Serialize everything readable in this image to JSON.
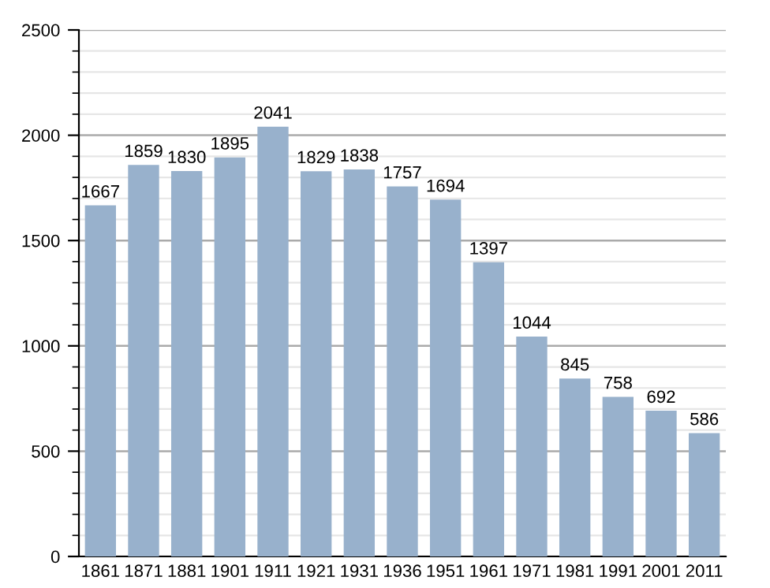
{
  "chart_data": {
    "type": "bar",
    "categories": [
      "1861",
      "1871",
      "1881",
      "1901",
      "1911",
      "1921",
      "1931",
      "1936",
      "1951",
      "1961",
      "1971",
      "1981",
      "1991",
      "2001",
      "2011"
    ],
    "values": [
      1667,
      1859,
      1830,
      1895,
      2041,
      1829,
      1838,
      1757,
      1694,
      1397,
      1044,
      845,
      758,
      692,
      586
    ],
    "color": "#98b1cc",
    "ylim": [
      0,
      2500
    ],
    "yticks": [
      0,
      500,
      1000,
      1500,
      2000,
      2500
    ],
    "grid": "y",
    "data_labels": true
  }
}
